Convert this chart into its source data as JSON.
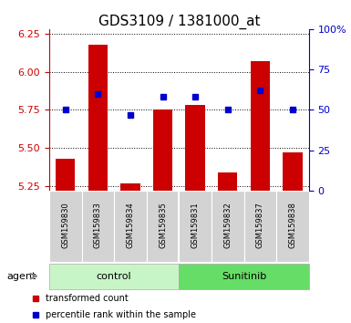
{
  "title": "GDS3109 / 1381000_at",
  "samples": [
    "GSM159830",
    "GSM159833",
    "GSM159834",
    "GSM159835",
    "GSM159831",
    "GSM159832",
    "GSM159837",
    "GSM159838"
  ],
  "groups": [
    "control",
    "control",
    "control",
    "control",
    "Sunitinib",
    "Sunitinib",
    "Sunitinib",
    "Sunitinib"
  ],
  "group_labels": [
    "control",
    "Sunitinib"
  ],
  "group_colors_light": [
    "#c8f5c8",
    "#66dd66"
  ],
  "bar_bottom": 5.22,
  "red_values": [
    5.43,
    6.18,
    5.27,
    5.75,
    5.78,
    5.34,
    6.07,
    5.47
  ],
  "blue_values": [
    50,
    60,
    47,
    58,
    58,
    50,
    62,
    50
  ],
  "ylim_left": [
    5.22,
    6.28
  ],
  "ylim_right": [
    0,
    100
  ],
  "yticks_left": [
    5.25,
    5.5,
    5.75,
    6.0,
    6.25
  ],
  "yticks_right": [
    0,
    25,
    50,
    75,
    100
  ],
  "ytick_labels_right": [
    "0",
    "25",
    "50",
    "75",
    "100%"
  ],
  "bar_color": "#cc0000",
  "dot_color": "#0000cc",
  "grid_color": "#000000",
  "bar_width": 0.6,
  "legend_items": [
    "transformed count",
    "percentile rank within the sample"
  ],
  "legend_colors": [
    "#cc0000",
    "#0000cc"
  ],
  "title_fontsize": 11,
  "tick_fontsize": 8,
  "left_tick_color": "#cc0000",
  "right_tick_color": "#0000cc",
  "sample_label_fontsize": 6,
  "group_label_fontsize": 8,
  "legend_fontsize": 7,
  "agent_fontsize": 8
}
